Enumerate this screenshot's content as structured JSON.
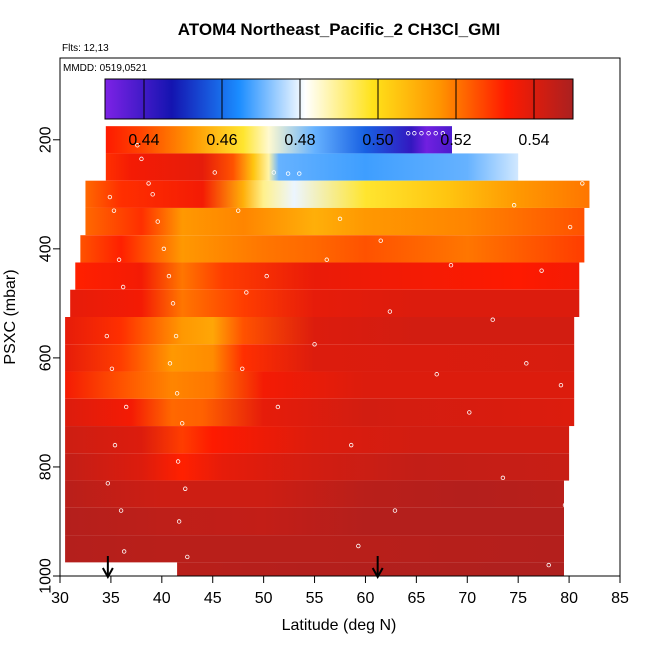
{
  "chart_data": {
    "type": "heatmap",
    "title": "ATOM4 Northeast_Pacific_2 CH3Cl_GMI",
    "flights_note": "Flts: 12,13",
    "date_note": "MMDD: 0519,0521",
    "xlabel": "Latitude (deg N)",
    "ylabel": "PSXC (mbar)",
    "xlim": [
      30,
      85
    ],
    "ylim": [
      1000,
      50
    ],
    "x_ticks": [
      30,
      35,
      40,
      45,
      50,
      55,
      60,
      65,
      70,
      75,
      80,
      85
    ],
    "y_ticks": [
      200,
      400,
      600,
      800,
      1000
    ],
    "colorbar": {
      "range": [
        0.43,
        0.55
      ],
      "ticks": [
        0.44,
        0.46,
        0.48,
        0.5,
        0.52,
        0.54
      ],
      "tick_labels": [
        "0.44",
        "0.46",
        "0.48",
        "0.50",
        "0.52",
        "0.54"
      ],
      "colors": [
        "#7d22e6",
        "#1414b0",
        "#1a8cff",
        "#ffffff",
        "#ffe21a",
        "#ff9500",
        "#ff1a00",
        "#aa2020"
      ]
    },
    "arrows_at_latitude": [
      34.7,
      61.2
    ],
    "layers": [
      {
        "p": 200,
        "lat": [
          34.5,
          68.5
        ],
        "stops": [
          [
            34.5,
            0.533
          ],
          [
            38,
            0.527
          ],
          [
            43,
            0.515
          ],
          [
            48,
            0.497
          ],
          [
            50.5,
            0.485
          ],
          [
            55,
            0.47
          ],
          [
            60,
            0.458
          ],
          [
            64.5,
            0.442
          ],
          [
            66,
            0.432
          ],
          [
            68.5,
            0.438
          ]
        ]
      },
      {
        "p": 250,
        "lat": [
          34.5,
          75
        ],
        "stops": [
          [
            34.5,
            0.53
          ],
          [
            37,
            0.535
          ],
          [
            44,
            0.538
          ],
          [
            47,
            0.525
          ],
          [
            49,
            0.505
          ],
          [
            50.5,
            0.488
          ],
          [
            51.5,
            0.47
          ],
          [
            60,
            0.467
          ],
          [
            70,
            0.47
          ],
          [
            75,
            0.478
          ]
        ]
      },
      {
        "p": 300,
        "lat": [
          32.5,
          82
        ],
        "stops": [
          [
            32.5,
            0.522
          ],
          [
            36,
            0.53
          ],
          [
            44,
            0.535
          ],
          [
            48,
            0.51
          ],
          [
            50,
            0.49
          ],
          [
            53,
            0.48
          ],
          [
            60,
            0.497
          ],
          [
            68,
            0.505
          ],
          [
            75,
            0.515
          ],
          [
            82,
            0.52
          ]
        ]
      },
      {
        "p": 350,
        "lat": [
          32.5,
          81.5
        ],
        "stops": [
          [
            32.5,
            0.522
          ],
          [
            38,
            0.53
          ],
          [
            42,
            0.515
          ],
          [
            48,
            0.518
          ],
          [
            55,
            0.51
          ],
          [
            60,
            0.515
          ],
          [
            70,
            0.518
          ],
          [
            81.5,
            0.525
          ]
        ]
      },
      {
        "p": 400,
        "lat": [
          32,
          81.5
        ],
        "stops": [
          [
            32,
            0.525
          ],
          [
            36,
            0.532
          ],
          [
            42,
            0.515
          ],
          [
            50,
            0.52
          ],
          [
            55,
            0.522
          ],
          [
            60,
            0.525
          ],
          [
            70,
            0.52
          ],
          [
            81.5,
            0.528
          ]
        ]
      },
      {
        "p": 450,
        "lat": [
          31.5,
          81
        ],
        "stops": [
          [
            31.5,
            0.532
          ],
          [
            38,
            0.535
          ],
          [
            42,
            0.52
          ],
          [
            46,
            0.528
          ],
          [
            55,
            0.537
          ],
          [
            65,
            0.535
          ],
          [
            75,
            0.533
          ],
          [
            81,
            0.535
          ]
        ]
      },
      {
        "p": 500,
        "lat": [
          31,
          81
        ],
        "stops": [
          [
            31,
            0.538
          ],
          [
            38,
            0.535
          ],
          [
            42,
            0.52
          ],
          [
            48,
            0.528
          ],
          [
            55,
            0.538
          ],
          [
            65,
            0.54
          ],
          [
            81,
            0.54
          ]
        ]
      },
      {
        "p": 550,
        "lat": [
          30.5,
          80.5
        ],
        "stops": [
          [
            30.5,
            0.538
          ],
          [
            36,
            0.53
          ],
          [
            42,
            0.515
          ],
          [
            45,
            0.512
          ],
          [
            48,
            0.525
          ],
          [
            55,
            0.54
          ],
          [
            65,
            0.542
          ],
          [
            80.5,
            0.542
          ]
        ]
      },
      {
        "p": 600,
        "lat": [
          30.5,
          80.5
        ],
        "stops": [
          [
            30.5,
            0.538
          ],
          [
            36,
            0.528
          ],
          [
            41,
            0.515
          ],
          [
            45,
            0.517
          ],
          [
            48,
            0.53
          ],
          [
            55,
            0.54
          ],
          [
            80.5,
            0.541
          ]
        ]
      },
      {
        "p": 650,
        "lat": [
          30.5,
          80.5
        ],
        "stops": [
          [
            30.5,
            0.535
          ],
          [
            36,
            0.525
          ],
          [
            41,
            0.518
          ],
          [
            45,
            0.52
          ],
          [
            50,
            0.535
          ],
          [
            60,
            0.54
          ],
          [
            80.5,
            0.54
          ]
        ]
      },
      {
        "p": 700,
        "lat": [
          30.5,
          80.5
        ],
        "stops": [
          [
            30.5,
            0.54
          ],
          [
            37,
            0.535
          ],
          [
            41,
            0.522
          ],
          [
            44,
            0.523
          ],
          [
            50,
            0.538
          ],
          [
            60,
            0.542
          ],
          [
            80.5,
            0.54
          ]
        ]
      },
      {
        "p": 750,
        "lat": [
          30.5,
          80
        ],
        "stops": [
          [
            30.5,
            0.543
          ],
          [
            38,
            0.54
          ],
          [
            42,
            0.528
          ],
          [
            45,
            0.533
          ],
          [
            55,
            0.54
          ],
          [
            65,
            0.542
          ],
          [
            80,
            0.542
          ]
        ]
      },
      {
        "p": 800,
        "lat": [
          30.5,
          80
        ],
        "stops": [
          [
            30.5,
            0.545
          ],
          [
            38,
            0.54
          ],
          [
            42,
            0.532
          ],
          [
            46,
            0.538
          ],
          [
            55,
            0.542
          ],
          [
            65,
            0.545
          ],
          [
            80,
            0.544
          ]
        ]
      },
      {
        "p": 850,
        "lat": [
          30.5,
          79.5
        ],
        "stops": [
          [
            30.5,
            0.547
          ],
          [
            40,
            0.543
          ],
          [
            50,
            0.543
          ],
          [
            60,
            0.547
          ],
          [
            70,
            0.548
          ],
          [
            79.5,
            0.547
          ]
        ]
      },
      {
        "p": 900,
        "lat": [
          30.5,
          79.5
        ],
        "stops": [
          [
            30.5,
            0.548
          ],
          [
            40,
            0.546
          ],
          [
            50,
            0.545
          ],
          [
            60,
            0.548
          ],
          [
            79.5,
            0.548
          ]
        ]
      },
      {
        "p": 950,
        "lat": [
          30.5,
          79.5
        ],
        "stops": [
          [
            30.5,
            0.548
          ],
          [
            40,
            0.547
          ],
          [
            55,
            0.547
          ],
          [
            79.5,
            0.548
          ]
        ]
      },
      {
        "p": 1000,
        "lat": [
          41.5,
          79.5
        ],
        "stops": [
          [
            41.5,
            0.547
          ],
          [
            55,
            0.548
          ],
          [
            79.5,
            0.549
          ]
        ]
      }
    ],
    "observations": [
      {
        "lat": 34.9,
        "p": 305
      },
      {
        "lat": 35.3,
        "p": 330
      },
      {
        "lat": 35.8,
        "p": 420
      },
      {
        "lat": 36.2,
        "p": 470
      },
      {
        "lat": 34.6,
        "p": 560
      },
      {
        "lat": 35.1,
        "p": 620
      },
      {
        "lat": 36.5,
        "p": 690
      },
      {
        "lat": 35.4,
        "p": 760
      },
      {
        "lat": 34.7,
        "p": 830
      },
      {
        "lat": 36.0,
        "p": 880
      },
      {
        "lat": 36.3,
        "p": 955
      },
      {
        "lat": 37.6,
        "p": 210
      },
      {
        "lat": 38.0,
        "p": 235
      },
      {
        "lat": 38.7,
        "p": 280
      },
      {
        "lat": 39.1,
        "p": 300
      },
      {
        "lat": 39.6,
        "p": 350
      },
      {
        "lat": 40.2,
        "p": 400
      },
      {
        "lat": 40.7,
        "p": 450
      },
      {
        "lat": 41.1,
        "p": 500
      },
      {
        "lat": 41.4,
        "p": 560
      },
      {
        "lat": 40.8,
        "p": 610
      },
      {
        "lat": 41.5,
        "p": 665
      },
      {
        "lat": 42.0,
        "p": 720
      },
      {
        "lat": 41.6,
        "p": 790
      },
      {
        "lat": 42.3,
        "p": 840
      },
      {
        "lat": 41.7,
        "p": 900
      },
      {
        "lat": 42.5,
        "p": 965
      },
      {
        "lat": 45.2,
        "p": 260
      },
      {
        "lat": 47.5,
        "p": 330
      },
      {
        "lat": 48.3,
        "p": 480
      },
      {
        "lat": 47.9,
        "p": 620
      },
      {
        "lat": 50.3,
        "p": 450
      },
      {
        "lat": 51.4,
        "p": 690
      },
      {
        "lat": 51.0,
        "p": 260
      },
      {
        "lat": 52.4,
        "p": 262
      },
      {
        "lat": 53.5,
        "p": 262
      },
      {
        "lat": 55.0,
        "p": 575
      },
      {
        "lat": 56.2,
        "p": 420
      },
      {
        "lat": 57.5,
        "p": 345
      },
      {
        "lat": 58.6,
        "p": 760
      },
      {
        "lat": 59.3,
        "p": 945
      },
      {
        "lat": 61.5,
        "p": 385
      },
      {
        "lat": 62.4,
        "p": 515
      },
      {
        "lat": 62.9,
        "p": 880
      },
      {
        "lat": 64.2,
        "p": 188
      },
      {
        "lat": 64.8,
        "p": 188
      },
      {
        "lat": 65.5,
        "p": 188
      },
      {
        "lat": 66.2,
        "p": 188
      },
      {
        "lat": 66.9,
        "p": 188
      },
      {
        "lat": 67.6,
        "p": 188
      },
      {
        "lat": 67.0,
        "p": 630
      },
      {
        "lat": 68.4,
        "p": 430
      },
      {
        "lat": 70.2,
        "p": 700
      },
      {
        "lat": 72.5,
        "p": 530
      },
      {
        "lat": 73.5,
        "p": 820
      },
      {
        "lat": 74.6,
        "p": 320
      },
      {
        "lat": 75.8,
        "p": 610
      },
      {
        "lat": 77.3,
        "p": 440
      },
      {
        "lat": 78.0,
        "p": 980
      },
      {
        "lat": 79.2,
        "p": 650
      },
      {
        "lat": 80.1,
        "p": 360
      },
      {
        "lat": 79.6,
        "p": 870
      },
      {
        "lat": 81.3,
        "p": 280
      }
    ]
  }
}
